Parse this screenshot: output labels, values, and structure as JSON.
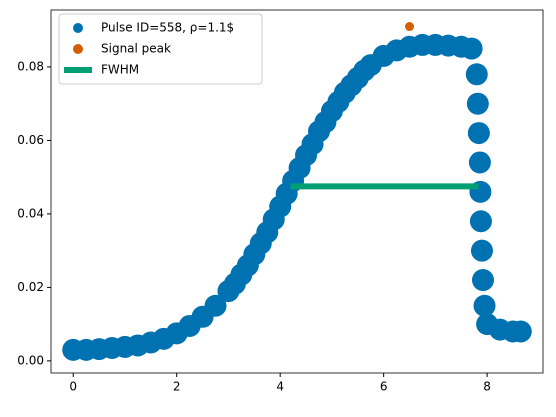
{
  "chart_data": {
    "type": "scatter",
    "xlim": [
      -0.43,
      9.08
    ],
    "ylim": [
      -0.0033,
      0.0955
    ],
    "xticks": [
      0,
      2,
      4,
      6,
      8
    ],
    "yticks": [
      {
        "value": 0,
        "label": "0.00"
      },
      0.02,
      0.04,
      0.06,
      0.08
    ],
    "series": [
      {
        "name": "Pulse ID=558, ρ=1.1$",
        "color": "#0072b2",
        "x": [
          0,
          0.25,
          0.5,
          0.75,
          1,
          1.25,
          1.5,
          1.75,
          2,
          2.25,
          2.5,
          2.75,
          3,
          3.125,
          3.25,
          3.375,
          3.5,
          3.625,
          3.75,
          3.875,
          4,
          4.125,
          4.25,
          4.375,
          4.5,
          4.625,
          4.75,
          4.875,
          5,
          5.125,
          5.25,
          5.375,
          5.5,
          5.625,
          5.75,
          6,
          6.25,
          6.5,
          6.75,
          7,
          7.25,
          7.5,
          7.7,
          7.8,
          7.82,
          7.84,
          7.86,
          7.87,
          7.88,
          7.9,
          7.92,
          7.95,
          8,
          8.25,
          8.5,
          8.65
        ],
        "y": [
          0.003,
          0.003,
          0.0032,
          0.0035,
          0.0038,
          0.0042,
          0.005,
          0.006,
          0.0075,
          0.0095,
          0.012,
          0.015,
          0.019,
          0.021,
          0.0235,
          0.026,
          0.029,
          0.032,
          0.035,
          0.0385,
          0.042,
          0.0455,
          0.049,
          0.0525,
          0.056,
          0.059,
          0.0625,
          0.065,
          0.068,
          0.0705,
          0.073,
          0.075,
          0.077,
          0.079,
          0.0805,
          0.083,
          0.0845,
          0.0855,
          0.086,
          0.086,
          0.0858,
          0.0855,
          0.085,
          0.078,
          0.07,
          0.062,
          0.054,
          0.046,
          0.038,
          0.03,
          0.022,
          0.015,
          0.01,
          0.0085,
          0.008,
          0.008
        ]
      },
      {
        "name": "Signal peak",
        "color": "#d55e00",
        "x": [
          6.5
        ],
        "y": [
          0.091
        ]
      },
      {
        "name": "FWHM",
        "color": "#009e73",
        "kind": "line",
        "x": [
          4.2,
          7.83
        ],
        "y": [
          0.0475,
          0.0475
        ]
      }
    ]
  }
}
